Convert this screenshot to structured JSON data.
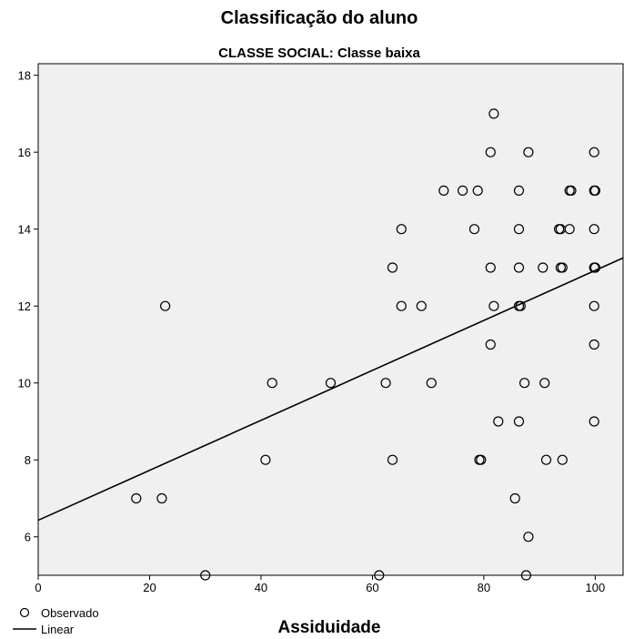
{
  "chart_data": {
    "type": "scatter",
    "title": "Classificação do aluno",
    "subtitle": "CLASSE SOCIAL: Classe baixa",
    "xlabel": "Assiduidade",
    "ylabel": "",
    "xlim": [
      0,
      105
    ],
    "ylim": [
      5,
      18.3
    ],
    "x_ticks": [
      0,
      20,
      40,
      60,
      80,
      100
    ],
    "y_ticks": [
      6,
      8,
      10,
      12,
      14,
      16,
      18
    ],
    "x_tick_labels": [
      "0",
      "20",
      "40",
      "60",
      "80",
      "100"
    ],
    "y_tick_labels": [
      "6",
      "8",
      "10",
      "12",
      "14",
      "16",
      "18"
    ],
    "grid": false,
    "plot_background": "#f0f0f0",
    "legend": {
      "position": "bottom-left",
      "entries": [
        {
          "label": "Observado",
          "marker": "circle"
        },
        {
          "label": "Linear",
          "marker": "line"
        }
      ]
    },
    "series": [
      {
        "name": "Observado",
        "points": [
          [
            17.6,
            7
          ],
          [
            22.2,
            7
          ],
          [
            22.8,
            12
          ],
          [
            30,
            5
          ],
          [
            40.8,
            8
          ],
          [
            42,
            10
          ],
          [
            52.5,
            10
          ],
          [
            61.2,
            5
          ],
          [
            62.4,
            10
          ],
          [
            63.6,
            13
          ],
          [
            63.6,
            8
          ],
          [
            65.2,
            14
          ],
          [
            65.2,
            12
          ],
          [
            68.8,
            12
          ],
          [
            70.6,
            10
          ],
          [
            72.8,
            15
          ],
          [
            76.2,
            15
          ],
          [
            78.3,
            14
          ],
          [
            78.9,
            15
          ],
          [
            79.2,
            8
          ],
          [
            79.5,
            8
          ],
          [
            81.2,
            16
          ],
          [
            81.2,
            13
          ],
          [
            81.2,
            11
          ],
          [
            81.8,
            17
          ],
          [
            81.8,
            12
          ],
          [
            82.6,
            9
          ],
          [
            85.6,
            7
          ],
          [
            86.3,
            15
          ],
          [
            86.3,
            14
          ],
          [
            86.3,
            13
          ],
          [
            86.3,
            12
          ],
          [
            86.6,
            12
          ],
          [
            86.3,
            9
          ],
          [
            87.3,
            10
          ],
          [
            87.6,
            5
          ],
          [
            88,
            6
          ],
          [
            88,
            16
          ],
          [
            90.6,
            13
          ],
          [
            90.9,
            10
          ],
          [
            91.2,
            8
          ],
          [
            93.5,
            14
          ],
          [
            93.8,
            14
          ],
          [
            93.8,
            13
          ],
          [
            94.1,
            13
          ],
          [
            94.1,
            8
          ],
          [
            95.4,
            15
          ],
          [
            95.4,
            14
          ],
          [
            95.7,
            15
          ],
          [
            99.8,
            16
          ],
          [
            99.8,
            15
          ],
          [
            100,
            15
          ],
          [
            99.8,
            14
          ],
          [
            99.8,
            13
          ],
          [
            100,
            13
          ],
          [
            99.8,
            12
          ],
          [
            99.8,
            11
          ],
          [
            99.8,
            9
          ]
        ]
      },
      {
        "name": "Linear",
        "line": [
          [
            0,
            6.43
          ],
          [
            105,
            13.25
          ]
        ]
      }
    ],
    "colors": {
      "marker": "#000000",
      "line": "#000000",
      "frame": "#000000"
    }
  }
}
